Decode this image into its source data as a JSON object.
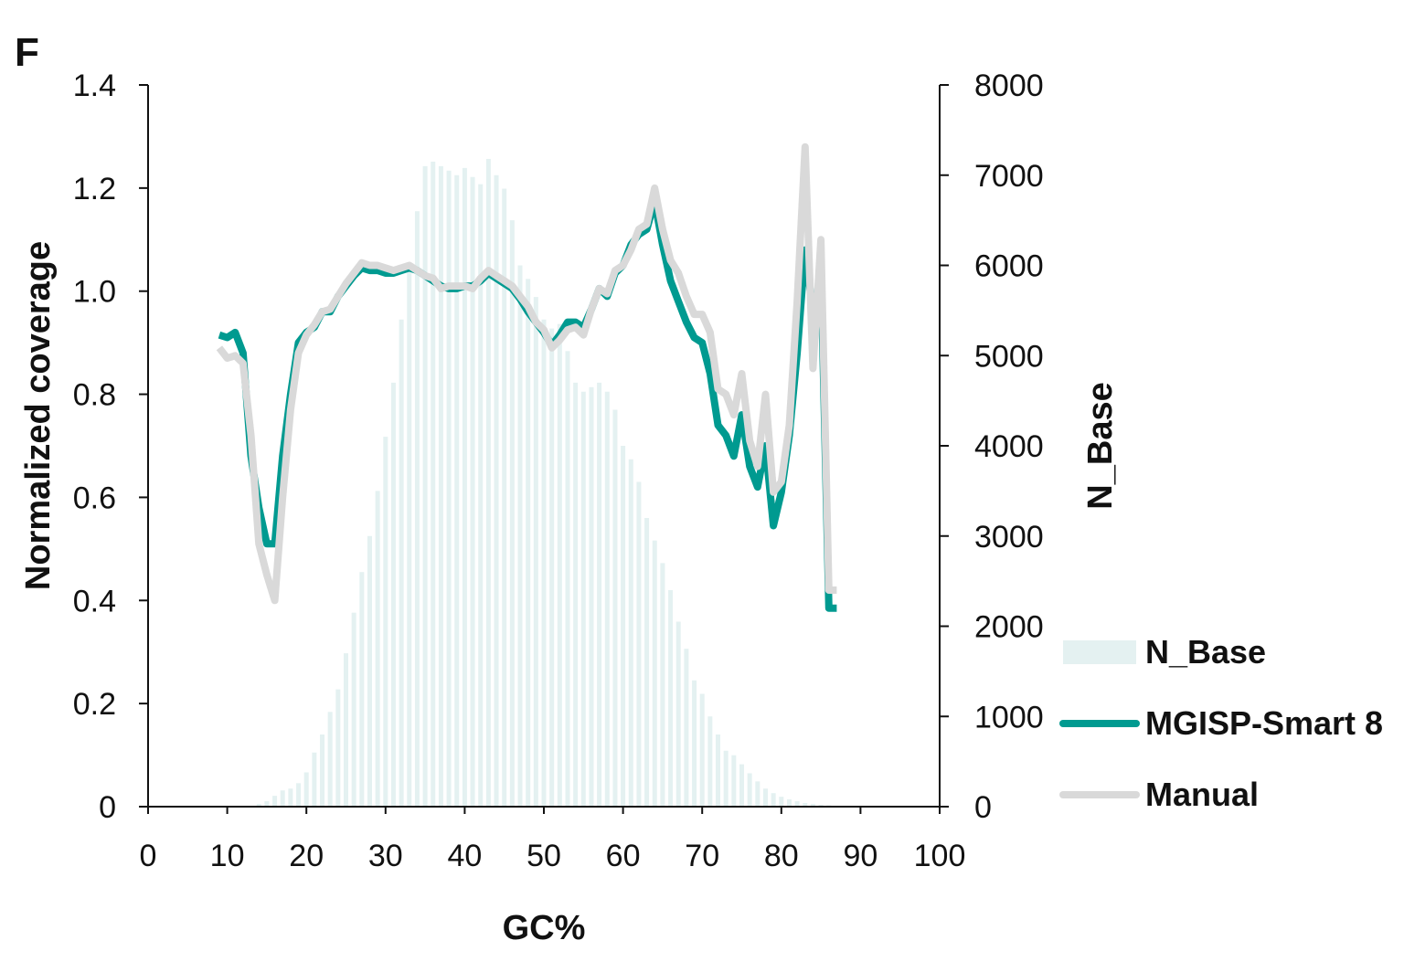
{
  "panel_label": "F",
  "colors": {
    "nbase": "#e4f1f1",
    "mgisp": "#009a90",
    "manual": "#d9d9d9",
    "axis": "#111111"
  },
  "chart_data": {
    "type": "bar+line",
    "title": "",
    "xlabel": "GC%",
    "ylabel_left": "Normalized coverage",
    "ylabel_right": "N_Base",
    "xlim": [
      0,
      100
    ],
    "ylim_left": [
      0,
      1.4
    ],
    "ylim_right": [
      0,
      8000
    ],
    "x_ticks": [
      "0",
      "10",
      "20",
      "30",
      "40",
      "50",
      "60",
      "70",
      "80",
      "90",
      "100"
    ],
    "y_left_ticks": [
      "0",
      "0.2",
      "0.4",
      "0.6",
      "0.8",
      "1.0",
      "1.2",
      "1.4"
    ],
    "y_right_ticks": [
      "0",
      "1000",
      "2000",
      "3000",
      "4000",
      "5000",
      "6000",
      "7000",
      "8000"
    ],
    "legend": [
      "N_Base",
      "MGISP-Smart 8",
      "Manual"
    ],
    "bars": {
      "name": "N_Base",
      "x": [
        14,
        15,
        16,
        17,
        18,
        19,
        20,
        21,
        22,
        23,
        24,
        25,
        26,
        27,
        28,
        29,
        30,
        31,
        32,
        33,
        34,
        35,
        36,
        37,
        38,
        39,
        40,
        41,
        42,
        43,
        44,
        45,
        46,
        47,
        48,
        49,
        50,
        51,
        52,
        53,
        54,
        55,
        56,
        57,
        58,
        59,
        60,
        61,
        62,
        63,
        64,
        65,
        66,
        67,
        68,
        69,
        70,
        71,
        72,
        73,
        74,
        75,
        76,
        77,
        78,
        79,
        80,
        81,
        82,
        83,
        84,
        85,
        86
      ],
      "values": [
        30,
        60,
        120,
        180,
        200,
        260,
        380,
        600,
        800,
        1050,
        1300,
        1700,
        2150,
        2600,
        3000,
        3500,
        4100,
        4700,
        5400,
        6000,
        6600,
        7100,
        7150,
        7100,
        7050,
        7000,
        7080,
        6980,
        6900,
        7180,
        7000,
        6850,
        6500,
        6000,
        5850,
        5650,
        5400,
        5300,
        5350,
        5050,
        4700,
        4600,
        4650,
        4700,
        4600,
        4400,
        4000,
        3850,
        3600,
        3200,
        2950,
        2700,
        2400,
        2050,
        1750,
        1400,
        1250,
        1000,
        800,
        620,
        570,
        470,
        370,
        280,
        200,
        150,
        110,
        80,
        60,
        40,
        30,
        20,
        15
      ]
    },
    "series": [
      {
        "name": "MGISP-Smart 8",
        "x": [
          9,
          10,
          11,
          12,
          13,
          14,
          15,
          16,
          17,
          18,
          19,
          20,
          21,
          22,
          23,
          24,
          25,
          26,
          27,
          28,
          29,
          30,
          31,
          32,
          33,
          34,
          35,
          36,
          37,
          38,
          39,
          40,
          41,
          42,
          43,
          44,
          45,
          46,
          47,
          48,
          49,
          50,
          51,
          52,
          53,
          54,
          55,
          56,
          57,
          58,
          59,
          60,
          61,
          62,
          63,
          64,
          65,
          66,
          67,
          68,
          69,
          70,
          71,
          72,
          73,
          74,
          75,
          76,
          77,
          78,
          79,
          80,
          81,
          82,
          83,
          84,
          84.5,
          85,
          86,
          87
        ],
        "values": [
          0.915,
          0.91,
          0.92,
          0.88,
          0.68,
          0.58,
          0.51,
          0.51,
          0.68,
          0.8,
          0.9,
          0.92,
          0.93,
          0.96,
          0.96,
          0.99,
          1.01,
          1.03,
          1.045,
          1.04,
          1.04,
          1.035,
          1.035,
          1.04,
          1.045,
          1.04,
          1.03,
          1.02,
          1.01,
          1.005,
          1.005,
          1.01,
          1.01,
          1.02,
          1.035,
          1.025,
          1.015,
          1.005,
          0.985,
          0.96,
          0.94,
          0.92,
          0.895,
          0.915,
          0.94,
          0.94,
          0.93,
          0.965,
          1.005,
          0.99,
          1.035,
          1.05,
          1.09,
          1.11,
          1.12,
          1.175,
          1.09,
          1.02,
          0.98,
          0.94,
          0.91,
          0.9,
          0.84,
          0.74,
          0.72,
          0.68,
          0.76,
          0.66,
          0.62,
          0.7,
          0.545,
          0.61,
          0.72,
          0.88,
          1.08,
          0.96,
          0.94,
          1.05,
          0.385,
          0.385
        ]
      },
      {
        "name": "Manual",
        "x": [
          9,
          10,
          11,
          12,
          13,
          14,
          15,
          16,
          17,
          18,
          19,
          20,
          21,
          22,
          23,
          24,
          25,
          26,
          27,
          28,
          29,
          30,
          31,
          32,
          33,
          34,
          35,
          36,
          37,
          38,
          39,
          40,
          41,
          42,
          43,
          44,
          45,
          46,
          47,
          48,
          49,
          50,
          51,
          52,
          53,
          54,
          55,
          56,
          57,
          58,
          59,
          60,
          61,
          62,
          63,
          64,
          65,
          66,
          67,
          68,
          69,
          70,
          71,
          72,
          73,
          74,
          75,
          76,
          77,
          78,
          79,
          80,
          81,
          82,
          83,
          84,
          85,
          86,
          87
        ],
        "values": [
          0.89,
          0.87,
          0.875,
          0.86,
          0.72,
          0.51,
          0.45,
          0.4,
          0.6,
          0.77,
          0.88,
          0.915,
          0.935,
          0.96,
          0.965,
          0.99,
          1.015,
          1.035,
          1.055,
          1.05,
          1.05,
          1.045,
          1.04,
          1.045,
          1.05,
          1.04,
          1.03,
          1.025,
          1.005,
          1.01,
          1.01,
          1.01,
          1.005,
          1.025,
          1.04,
          1.03,
          1.02,
          1.01,
          0.99,
          0.97,
          0.94,
          0.925,
          0.89,
          0.905,
          0.925,
          0.93,
          0.915,
          0.965,
          1.005,
          0.995,
          1.04,
          1.05,
          1.08,
          1.12,
          1.13,
          1.2,
          1.12,
          1.06,
          1.035,
          0.99,
          0.955,
          0.955,
          0.92,
          0.81,
          0.8,
          0.76,
          0.84,
          0.71,
          0.66,
          0.8,
          0.61,
          0.63,
          0.74,
          0.98,
          1.28,
          0.85,
          1.1,
          0.42,
          0.42
        ]
      }
    ]
  }
}
